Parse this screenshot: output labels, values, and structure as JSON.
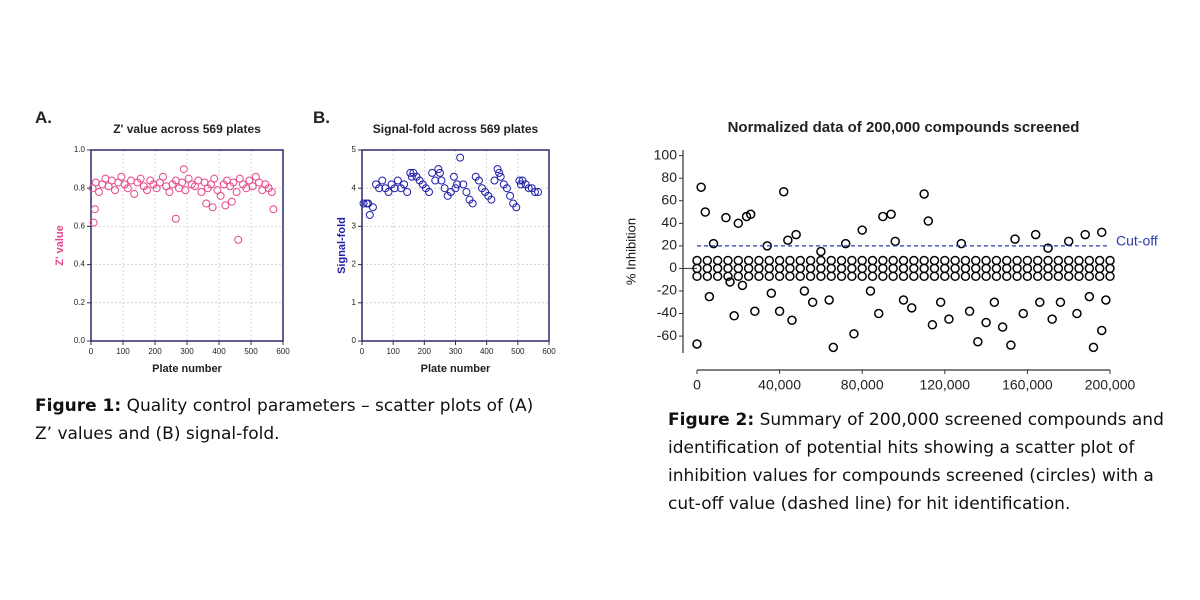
{
  "panel_labels": [
    "A.",
    "B."
  ],
  "captions": [
    {
      "label": "Figure 1:",
      "text": "Quality control parameters – scatter plots of (A) Z’ values and (B) signal-fold."
    },
    {
      "label": "Figure 2:",
      "text": "Summary of 200,000 screened compounds and identification of potential hits showing a scatter plot of inhibition values for compounds screened (circles) with a cut-off value (dashed line) for hit identification."
    }
  ],
  "chart_data": [
    {
      "type": "scatter",
      "title": "Z' value across 569 plates",
      "xlabel": "Plate number",
      "ylabel": "Z' value",
      "ylabel_color": "#e8478b",
      "xlim": [
        0,
        600
      ],
      "xticks": [
        0,
        100,
        200,
        300,
        400,
        500,
        600
      ],
      "ylim": [
        0,
        1
      ],
      "yticks": [
        {
          "value": 0,
          "label": "0.0"
        },
        0.2,
        0.4,
        0.6,
        0.8,
        {
          "value": 1,
          "label": "1.0"
        }
      ],
      "grid": true,
      "series": [
        {
          "color": "#e8478b",
          "x": [
            5,
            15,
            25,
            35,
            45,
            55,
            65,
            75,
            85,
            95,
            105,
            115,
            125,
            135,
            145,
            155,
            165,
            175,
            185,
            195,
            205,
            215,
            225,
            235,
            245,
            255,
            265,
            275,
            285,
            295,
            305,
            315,
            325,
            335,
            345,
            355,
            365,
            375,
            385,
            395,
            405,
            415,
            425,
            435,
            445,
            455,
            465,
            475,
            485,
            495,
            505,
            515,
            525,
            535,
            545,
            555,
            565,
            8,
            12,
            265,
            290,
            460,
            570,
            360,
            380,
            420,
            440
          ],
          "y": [
            0.8,
            0.83,
            0.78,
            0.82,
            0.85,
            0.81,
            0.84,
            0.79,
            0.83,
            0.86,
            0.82,
            0.8,
            0.84,
            0.77,
            0.83,
            0.85,
            0.81,
            0.79,
            0.84,
            0.82,
            0.8,
            0.83,
            0.86,
            0.81,
            0.78,
            0.82,
            0.84,
            0.8,
            0.83,
            0.79,
            0.85,
            0.82,
            0.81,
            0.84,
            0.78,
            0.83,
            0.8,
            0.82,
            0.85,
            0.79,
            0.76,
            0.82,
            0.84,
            0.81,
            0.83,
            0.78,
            0.85,
            0.82,
            0.8,
            0.84,
            0.81,
            0.86,
            0.83,
            0.79,
            0.82,
            0.8,
            0.78,
            0.62,
            0.69,
            0.64,
            0.9,
            0.53,
            0.69,
            0.72,
            0.7,
            0.71,
            0.73
          ]
        }
      ]
    },
    {
      "type": "scatter",
      "title": "Signal-fold across 569 plates",
      "xlabel": "Plate number",
      "ylabel": "Signal-fold",
      "ylabel_color": "#1f1fa8",
      "xlim": [
        0,
        600
      ],
      "xticks": [
        0,
        100,
        200,
        300,
        400,
        500,
        600
      ],
      "ylim": [
        0,
        5
      ],
      "yticks": [
        0,
        1,
        2,
        3,
        4,
        5
      ],
      "grid": true,
      "series": [
        {
          "color": "#1f1fa8",
          "x": [
            5,
            15,
            25,
            35,
            45,
            55,
            65,
            75,
            85,
            95,
            105,
            115,
            125,
            135,
            145,
            155,
            165,
            175,
            185,
            195,
            205,
            215,
            225,
            235,
            245,
            255,
            265,
            275,
            285,
            295,
            305,
            315,
            325,
            335,
            345,
            355,
            365,
            375,
            385,
            395,
            405,
            415,
            425,
            435,
            445,
            455,
            465,
            475,
            485,
            495,
            505,
            515,
            525,
            535,
            545,
            555,
            565,
            20,
            160,
            250,
            300,
            440,
            510
          ],
          "y": [
            3.6,
            3.6,
            3.3,
            3.5,
            4.1,
            4.0,
            4.2,
            4.0,
            3.9,
            4.1,
            4.0,
            4.2,
            4.0,
            4.1,
            3.9,
            4.4,
            4.4,
            4.3,
            4.2,
            4.1,
            4.0,
            3.9,
            4.4,
            4.2,
            4.5,
            4.2,
            4.0,
            3.8,
            3.9,
            4.3,
            4.1,
            4.8,
            4.1,
            3.9,
            3.7,
            3.6,
            4.3,
            4.2,
            4.0,
            3.9,
            3.8,
            3.7,
            4.2,
            4.5,
            4.3,
            4.1,
            4.0,
            3.8,
            3.6,
            3.5,
            4.2,
            4.2,
            4.1,
            4.0,
            4.0,
            3.9,
            3.9,
            3.6,
            4.3,
            4.4,
            4.0,
            4.4,
            4.1
          ]
        }
      ]
    },
    {
      "type": "scatter",
      "title": "Normalized data of 200,000 compounds screened",
      "ylabel": "% Inhibition",
      "ylabel_color": "#111111",
      "xlim": [
        0,
        200000
      ],
      "xticks": [
        0,
        {
          "value": 40000,
          "label": "40,000"
        },
        {
          "value": 80000,
          "label": "80,000"
        },
        {
          "value": 120000,
          "label": "120,000"
        },
        {
          "value": 160000,
          "label": "160,000"
        },
        {
          "value": 200000,
          "label": "200,000"
        }
      ],
      "ylim": [
        -75,
        105
      ],
      "yticks": [
        100,
        80,
        60,
        40,
        20,
        0,
        -20,
        -40,
        -60
      ],
      "grid": false,
      "cutoff": {
        "value": 20,
        "label": "Cut-off",
        "color": "#2b3aa8"
      },
      "series": [
        {
          "color": "#000000",
          "x": [
            0,
            5000,
            10000,
            15000,
            20000,
            25000,
            30000,
            35000,
            40000,
            45000,
            50000,
            55000,
            60000,
            65000,
            70000,
            75000,
            80000,
            85000,
            90000,
            95000,
            100000,
            105000,
            110000,
            115000,
            120000,
            125000,
            130000,
            135000,
            140000,
            145000,
            150000,
            155000,
            160000,
            165000,
            170000,
            175000,
            180000,
            185000,
            190000,
            195000,
            200000,
            0,
            5000,
            10000,
            15000,
            20000,
            25000,
            30000,
            35000,
            40000,
            45000,
            50000,
            55000,
            60000,
            65000,
            70000,
            75000,
            80000,
            85000,
            90000,
            95000,
            100000,
            105000,
            110000,
            115000,
            120000,
            125000,
            130000,
            135000,
            140000,
            145000,
            150000,
            155000,
            160000,
            165000,
            170000,
            175000,
            180000,
            185000,
            190000,
            195000,
            200000,
            0,
            5000,
            10000,
            15000,
            20000,
            25000,
            30000,
            35000,
            40000,
            45000,
            50000,
            55000,
            60000,
            65000,
            70000,
            75000,
            80000,
            85000,
            90000,
            95000,
            100000,
            105000,
            110000,
            115000,
            120000,
            125000,
            130000,
            135000,
            140000,
            145000,
            150000,
            155000,
            160000,
            165000,
            170000,
            175000,
            180000,
            185000,
            190000,
            195000,
            200000,
            0,
            2000,
            4000,
            8000,
            14000,
            16000,
            18000,
            20000,
            22000,
            24000,
            26000,
            28000,
            34000,
            36000,
            40000,
            42000,
            44000,
            46000,
            48000,
            52000,
            56000,
            60000,
            64000,
            66000,
            72000,
            76000,
            80000,
            84000,
            88000,
            90000,
            94000,
            100000,
            104000,
            110000,
            112000,
            114000,
            118000,
            122000,
            128000,
            132000,
            136000,
            140000,
            144000,
            148000,
            152000,
            154000,
            158000,
            164000,
            166000,
            170000,
            172000,
            176000,
            180000,
            184000,
            188000,
            190000,
            192000,
            196000,
            198000,
            196000,
            6000,
            96000
          ],
          "y": [
            -7,
            -7,
            -7,
            -7,
            -7,
            -7,
            -7,
            -7,
            -7,
            -7,
            -7,
            -7,
            -7,
            -7,
            -7,
            -7,
            -7,
            -7,
            -7,
            -7,
            -7,
            -7,
            -7,
            -7,
            -7,
            -7,
            -7,
            -7,
            -7,
            -7,
            -7,
            -7,
            -7,
            -7,
            -7,
            -7,
            -7,
            -7,
            -7,
            -7,
            -7,
            0,
            0,
            0,
            0,
            0,
            0,
            0,
            0,
            0,
            0,
            0,
            0,
            0,
            0,
            0,
            0,
            0,
            0,
            0,
            0,
            0,
            0,
            0,
            0,
            0,
            0,
            0,
            0,
            0,
            0,
            0,
            0,
            0,
            0,
            0,
            0,
            0,
            0,
            0,
            0,
            0,
            7,
            7,
            7,
            7,
            7,
            7,
            7,
            7,
            7,
            7,
            7,
            7,
            7,
            7,
            7,
            7,
            7,
            7,
            7,
            7,
            7,
            7,
            7,
            7,
            7,
            7,
            7,
            7,
            7,
            7,
            7,
            7,
            7,
            7,
            7,
            7,
            7,
            7,
            7,
            7,
            7,
            -67,
            72,
            50,
            22,
            45,
            -12,
            -42,
            40,
            -15,
            46,
            48,
            -38,
            20,
            -22,
            -38,
            68,
            25,
            -46,
            30,
            -20,
            -30,
            15,
            -28,
            -70,
            22,
            -58,
            34,
            -20,
            -40,
            46,
            48,
            -28,
            -35,
            66,
            42,
            -50,
            -30,
            -45,
            22,
            -38,
            -65,
            -48,
            -30,
            -52,
            -68,
            26,
            -40,
            30,
            -30,
            18,
            -45,
            -30,
            24,
            -40,
            30,
            -25,
            -70,
            -55,
            -28,
            32,
            -25,
            24
          ]
        }
      ]
    }
  ]
}
